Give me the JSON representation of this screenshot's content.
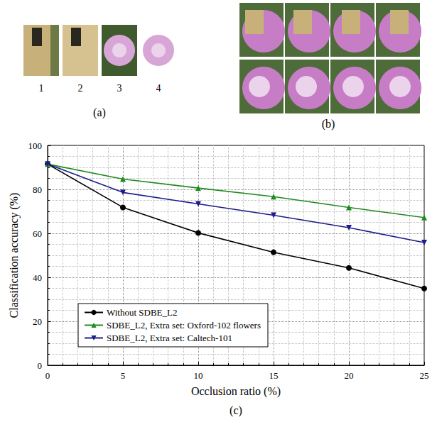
{
  "panels": {
    "a": {
      "label": "(a)",
      "image_labels": [
        "1",
        "2",
        "3",
        "4"
      ]
    },
    "b": {
      "label": "(b)"
    },
    "c": {
      "label": "(c)"
    }
  },
  "chart_data": {
    "type": "line",
    "x_label": "Occlusion ratio (%)",
    "y_label": "Classification accuracy (%)",
    "x": [
      0,
      5,
      10,
      15,
      20,
      25
    ],
    "series": [
      {
        "name": "Without SDBE_L2",
        "color": "#000000",
        "marker": "circle",
        "values": [
          91.5,
          71.8,
          60.2,
          51.4,
          44.3,
          34.9
        ]
      },
      {
        "name": "SDBE_L2, Extra set: Oxford-102 flowers",
        "color": "#1f8a1f",
        "marker": "triangle_up",
        "values": [
          91.5,
          84.7,
          80.6,
          76.7,
          71.8,
          67.2
        ]
      },
      {
        "name": "SDBE_L2, Extra set: Caltech-101",
        "color": "#1c1c8a",
        "marker": "triangle_down",
        "values": [
          91.5,
          78.6,
          73.4,
          68.2,
          62.6,
          55.8
        ]
      }
    ],
    "xlim": [
      0,
      25
    ],
    "xticks": [
      0,
      5,
      10,
      15,
      20,
      25
    ],
    "ylim": [
      0,
      100
    ],
    "yticks": [
      0,
      20,
      40,
      60,
      80,
      100
    ],
    "grid": true,
    "legend": "lower left"
  }
}
